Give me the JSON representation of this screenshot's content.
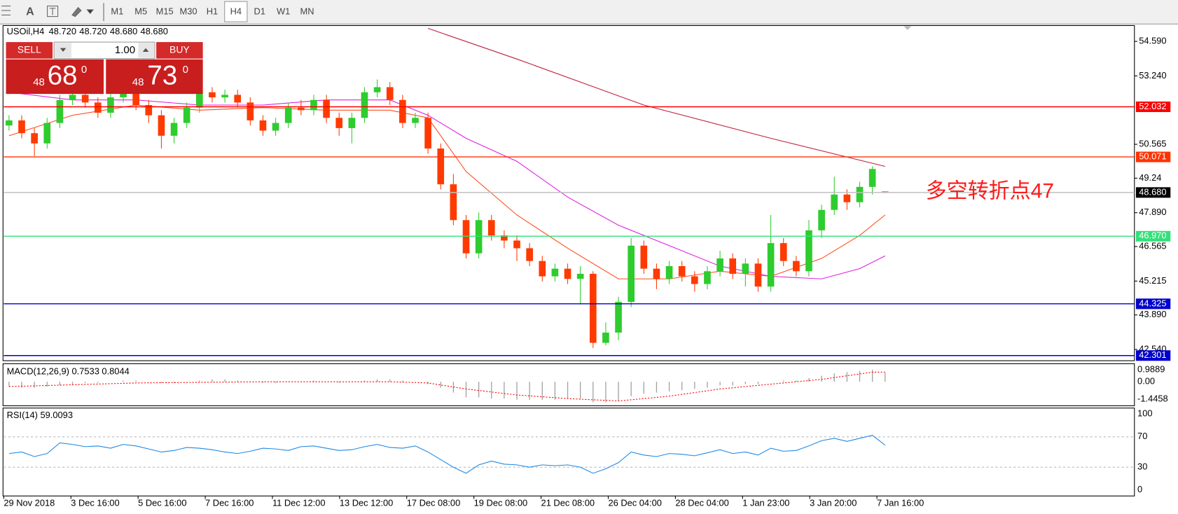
{
  "toolbar": {
    "text_tool": "A",
    "timeframes": [
      "M1",
      "M5",
      "M15",
      "M30",
      "H1",
      "H4",
      "D1",
      "W1",
      "MN"
    ],
    "active": 5
  },
  "header": {
    "symbol": "USOil,H4",
    "values": [
      "48.720",
      "48.720",
      "48.680",
      "48.680"
    ]
  },
  "trade_panel": {
    "sell": "SELL",
    "buy": "BUY",
    "lots": "1.00",
    "sell_price": {
      "prefix": "48",
      "big": "68",
      "suffix": "0"
    },
    "buy_price": {
      "prefix": "48",
      "big": "73",
      "suffix": "0"
    }
  },
  "annotation": "多空转折点47",
  "price_chart": {
    "type": "candlestick",
    "up_color": "#2ecc2e",
    "down_color": "#ff3a00",
    "ylim": [
      42.1,
      55.21
    ],
    "yticks": [
      {
        "value": 54.59,
        "label": "54.590"
      },
      {
        "value": 53.24,
        "label": "53.240"
      },
      50.565,
      49.24,
      {
        "value": 47.89,
        "label": "47.890"
      },
      46.565,
      45.215,
      {
        "value": 43.89,
        "label": "43.890"
      },
      {
        "value": 42.54,
        "label": "42.540"
      }
    ],
    "levels": [
      {
        "value": 52.032,
        "color": "#ff0000"
      },
      {
        "value": 50.071,
        "color": "#ff3300"
      },
      {
        "value": 48.68,
        "label": "48.680",
        "color": "#000000",
        "line_color": "#c0c0c0"
      },
      {
        "value": 46.97,
        "label": "46.970",
        "color": "#33e07a"
      },
      {
        "value": 44.325,
        "color": "#0000cc"
      },
      {
        "value": 42.301,
        "color": "#0000cc"
      }
    ],
    "open": [
      51.3,
      51.5,
      51.0,
      50.6,
      51.4,
      52.3,
      52.5,
      52.2,
      51.8,
      52.4,
      52.6,
      52.1,
      51.7,
      50.9,
      51.4,
      52.0,
      52.6,
      52.4,
      52.5,
      52.2,
      51.5,
      51.1,
      51.4,
      52.0,
      51.9,
      52.3,
      51.6,
      51.2,
      51.6,
      52.6,
      52.8,
      52.3,
      51.4,
      51.6,
      50.4,
      49.0,
      47.6,
      46.3,
      47.6,
      47.0,
      46.8,
      46.5,
      46.0,
      45.4,
      45.7,
      45.3,
      45.5,
      42.8,
      43.2,
      44.4,
      46.6,
      45.7,
      45.3,
      45.8,
      45.4,
      45.1,
      45.6,
      46.1,
      45.5,
      45.9,
      45.0,
      46.7,
      46.0,
      45.6,
      47.2,
      48.0,
      48.6,
      48.3,
      48.9,
      48.72
    ],
    "high": [
      51.7,
      51.7,
      51.2,
      51.6,
      52.5,
      52.8,
      52.7,
      52.4,
      52.6,
      52.9,
      52.8,
      52.3,
      51.9,
      51.6,
      52.2,
      52.9,
      52.8,
      52.7,
      52.7,
      52.4,
      51.7,
      51.6,
      52.2,
      52.3,
      52.5,
      52.5,
      51.8,
      51.8,
      52.8,
      53.1,
      53.0,
      52.5,
      51.8,
      51.8,
      50.6,
      49.4,
      47.8,
      47.9,
      47.8,
      47.2,
      47.0,
      46.7,
      46.2,
      45.9,
      45.9,
      45.8,
      45.6,
      43.6,
      44.6,
      46.9,
      46.8,
      45.9,
      46.0,
      46.0,
      45.6,
      45.8,
      46.4,
      46.3,
      46.1,
      46.1,
      47.8,
      46.9,
      46.2,
      47.6,
      48.2,
      49.3,
      48.8,
      49.1,
      49.7,
      48.72
    ],
    "low": [
      51.1,
      50.8,
      50.1,
      50.4,
      51.2,
      52.1,
      52.0,
      51.6,
      51.6,
      52.2,
      51.9,
      51.4,
      50.4,
      50.6,
      51.2,
      51.8,
      52.2,
      52.2,
      52.0,
      51.3,
      50.9,
      50.9,
      51.2,
      51.7,
      51.7,
      51.4,
      50.9,
      50.6,
      51.4,
      52.4,
      52.1,
      51.2,
      51.2,
      50.2,
      48.8,
      47.4,
      46.1,
      46.1,
      46.8,
      46.5,
      46.0,
      45.8,
      45.2,
      45.2,
      45.1,
      44.3,
      42.6,
      42.7,
      42.9,
      44.2,
      45.5,
      44.9,
      45.1,
      45.2,
      44.8,
      44.9,
      45.4,
      45.3,
      45.0,
      44.8,
      44.8,
      45.8,
      45.4,
      45.4,
      46.9,
      47.8,
      48.0,
      48.1,
      48.6,
      48.68
    ],
    "close": [
      51.5,
      51.0,
      50.6,
      51.4,
      52.3,
      52.5,
      52.2,
      51.8,
      52.4,
      52.6,
      52.1,
      51.7,
      50.9,
      51.4,
      52.0,
      52.6,
      52.4,
      52.5,
      52.2,
      51.5,
      51.1,
      51.4,
      52.0,
      51.9,
      52.3,
      51.6,
      51.2,
      51.6,
      52.6,
      52.8,
      52.3,
      51.4,
      51.6,
      50.4,
      49.0,
      47.6,
      46.3,
      47.6,
      47.0,
      46.8,
      46.5,
      46.0,
      45.4,
      45.7,
      45.3,
      45.5,
      42.8,
      43.2,
      44.4,
      46.6,
      45.7,
      45.3,
      45.8,
      45.4,
      45.1,
      45.6,
      46.1,
      45.5,
      45.9,
      45.0,
      46.7,
      46.0,
      45.6,
      47.2,
      48.0,
      48.6,
      48.3,
      48.9,
      49.6,
      48.68
    ],
    "moving_averages": [
      {
        "color": "#ff4a1a",
        "index": [
          0,
          5,
          10,
          15,
          20,
          25,
          30,
          33,
          36,
          40,
          44,
          48,
          52,
          56,
          60,
          64,
          67,
          69
        ],
        "values": [
          50.9,
          51.7,
          52.1,
          51.9,
          52.0,
          51.9,
          51.9,
          51.6,
          49.5,
          47.8,
          46.5,
          45.3,
          45.3,
          45.6,
          45.4,
          46.1,
          47.0,
          47.8
        ]
      },
      {
        "color": "#e020e0",
        "index": [
          0,
          5,
          10,
          15,
          20,
          25,
          30,
          33,
          36,
          40,
          44,
          48,
          52,
          56,
          60,
          64,
          67,
          69
        ],
        "values": [
          52.6,
          52.3,
          52.3,
          52.1,
          52.1,
          52.3,
          52.3,
          51.7,
          50.8,
          49.9,
          48.5,
          47.4,
          46.6,
          45.8,
          45.4,
          45.3,
          45.7,
          46.2
        ]
      },
      {
        "color": "#c0203a",
        "index": [
          33,
          40,
          50,
          60,
          69
        ],
        "values": [
          55.1,
          53.9,
          52.1,
          50.8,
          49.7
        ]
      }
    ]
  },
  "macd": {
    "label": "MACD(12,26,9) 0.7533 0.8044",
    "ylim": [
      -2.0,
      1.44
    ],
    "yticks": [
      0.9889,
      {
        "value": 0,
        "label": "0.00"
      },
      -1.4458
    ],
    "bar_color": "#a0a0a0",
    "signal_color": "#ff0000",
    "histogram": [
      -0.4,
      -0.5,
      -0.5,
      -0.4,
      -0.3,
      -0.2,
      -0.1,
      -0.1,
      0.0,
      0.1,
      0.1,
      0.0,
      -0.1,
      -0.1,
      0.0,
      0.1,
      0.2,
      0.2,
      0.1,
      0.0,
      -0.1,
      -0.1,
      0.0,
      0.0,
      0.1,
      0.0,
      -0.1,
      0.0,
      0.1,
      0.2,
      0.2,
      0.1,
      0.0,
      -0.2,
      -0.5,
      -0.9,
      -1.3,
      -1.3,
      -1.4,
      -1.4,
      -1.5,
      -1.5,
      -1.5,
      -1.5,
      -1.4,
      -1.4,
      -1.7,
      -1.7,
      -1.6,
      -1.2,
      -1.0,
      -0.9,
      -0.8,
      -0.7,
      -0.6,
      -0.5,
      -0.3,
      -0.3,
      -0.2,
      -0.2,
      0.0,
      0.1,
      0.1,
      0.3,
      0.5,
      0.7,
      0.8,
      0.9,
      1.0,
      0.7533
    ],
    "signal_index": [
      0,
      10,
      20,
      30,
      33,
      36,
      40,
      44,
      48,
      52,
      56,
      60,
      64,
      68,
      69
    ],
    "signal": [
      -0.4,
      -0.1,
      0.0,
      0.0,
      -0.1,
      -0.6,
      -1.1,
      -1.4,
      -1.6,
      -1.2,
      -0.6,
      -0.2,
      0.2,
      0.8,
      0.8044
    ]
  },
  "rsi": {
    "label": "RSI(14) 59.0093",
    "ylim": [
      -7.9,
      107.9
    ],
    "yticks": [
      100,
      70,
      30,
      0
    ],
    "levels": [
      70,
      30
    ],
    "color": "#1e88e5",
    "values": [
      48,
      50,
      44,
      48,
      62,
      60,
      57,
      58,
      55,
      60,
      58,
      54,
      50,
      52,
      56,
      55,
      53,
      50,
      48,
      51,
      55,
      54,
      52,
      57,
      58,
      55,
      52,
      53,
      57,
      60,
      56,
      55,
      58,
      50,
      40,
      30,
      22,
      33,
      38,
      34,
      33,
      30,
      33,
      32,
      33,
      30,
      22,
      28,
      36,
      50,
      46,
      44,
      48,
      47,
      45,
      49,
      53,
      48,
      50,
      46,
      55,
      51,
      52,
      58,
      65,
      68,
      64,
      68,
      72,
      59.0093
    ]
  },
  "time_axis": {
    "labels": [
      "29 Nov 2018",
      "3 Dec 16:00",
      "5 Dec 16:00",
      "7 Dec 16:00",
      "11 Dec 12:00",
      "13 Dec 12:00",
      "17 Dec 08:00",
      "19 Dec 08:00",
      "21 Dec 08:00",
      "26 Dec 04:00",
      "28 Dec 04:00",
      "1 Jan 23:00",
      "3 Jan 20:00",
      "7 Jan 16:00"
    ]
  }
}
